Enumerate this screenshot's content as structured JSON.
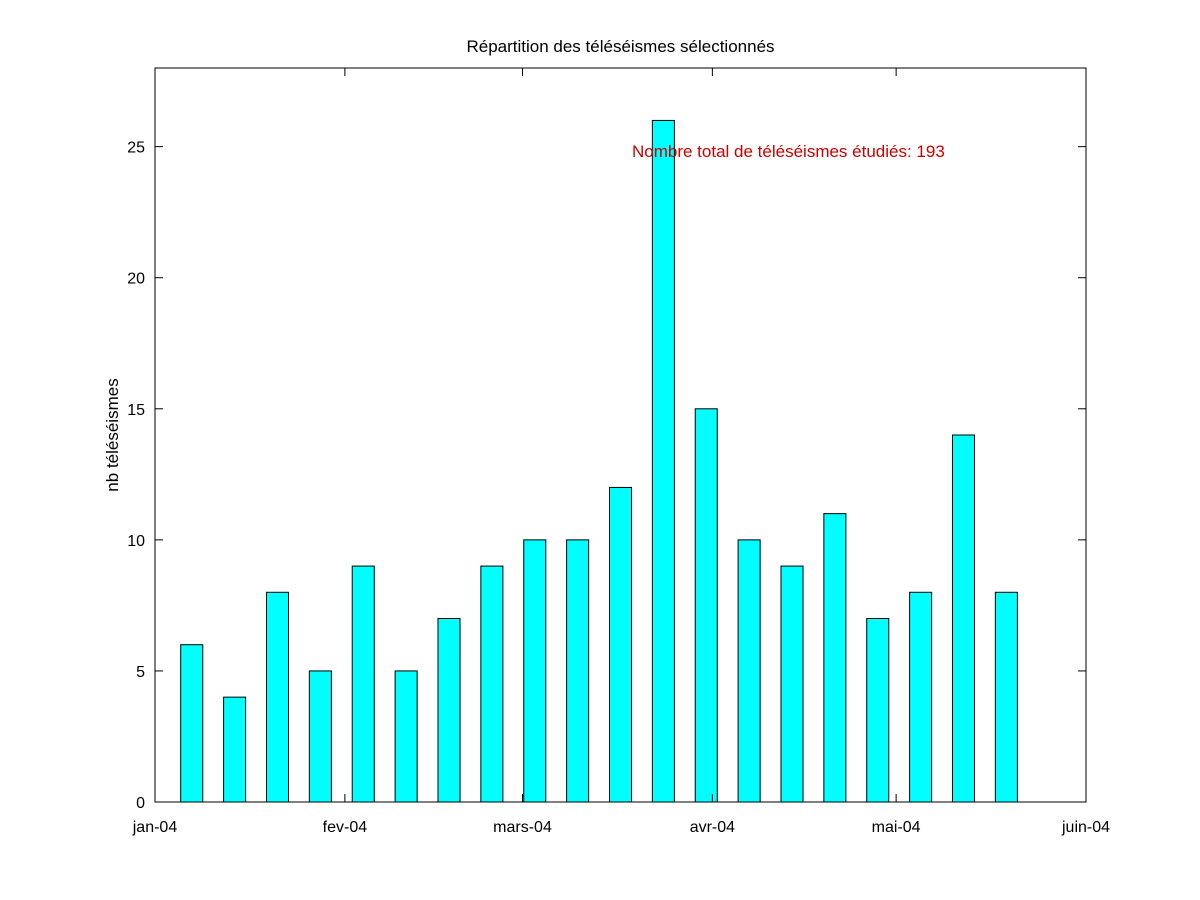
{
  "chart_data": {
    "type": "bar",
    "title": "Répartition des téléséismes sélectionnés",
    "xlabel": "",
    "ylabel": "nb téléséismes",
    "x_axis": {
      "type": "date",
      "range": [
        "2004-01-01",
        "2004-06-01"
      ],
      "ticks": [
        {
          "date": "2004-01-01",
          "label": "jan-04"
        },
        {
          "date": "2004-02-01",
          "label": "fev-04"
        },
        {
          "date": "2004-03-01",
          "label": "mars-04"
        },
        {
          "date": "2004-04-01",
          "label": "avr-04"
        },
        {
          "date": "2004-05-01",
          "label": "mai-04"
        },
        {
          "date": "2004-06-01",
          "label": "juin-04"
        }
      ]
    },
    "ylim": [
      0,
      28
    ],
    "y_ticks": [
      0,
      5,
      10,
      15,
      20,
      25
    ],
    "bar_color": "#00ffff",
    "bar_edge_color": "#000000",
    "series": [
      {
        "points": [
          {
            "x": "2004-01-07",
            "y": 6
          },
          {
            "x": "2004-01-14",
            "y": 4
          },
          {
            "x": "2004-01-21",
            "y": 8
          },
          {
            "x": "2004-01-28",
            "y": 5
          },
          {
            "x": "2004-02-04",
            "y": 9
          },
          {
            "x": "2004-02-11",
            "y": 5
          },
          {
            "x": "2004-02-18",
            "y": 7
          },
          {
            "x": "2004-02-25",
            "y": 9
          },
          {
            "x": "2004-03-03",
            "y": 10
          },
          {
            "x": "2004-03-10",
            "y": 10
          },
          {
            "x": "2004-03-17",
            "y": 12
          },
          {
            "x": "2004-03-24",
            "y": 26
          },
          {
            "x": "2004-03-31",
            "y": 15
          },
          {
            "x": "2004-04-07",
            "y": 10
          },
          {
            "x": "2004-04-14",
            "y": 9
          },
          {
            "x": "2004-04-21",
            "y": 11
          },
          {
            "x": "2004-04-28",
            "y": 7
          },
          {
            "x": "2004-05-05",
            "y": 8
          },
          {
            "x": "2004-05-12",
            "y": 14
          },
          {
            "x": "2004-05-19",
            "y": 8
          }
        ]
      }
    ],
    "annotation": {
      "text": "Nombre total de téléséismes étudiés: 193",
      "color": "#cc0000"
    },
    "grid": false
  }
}
